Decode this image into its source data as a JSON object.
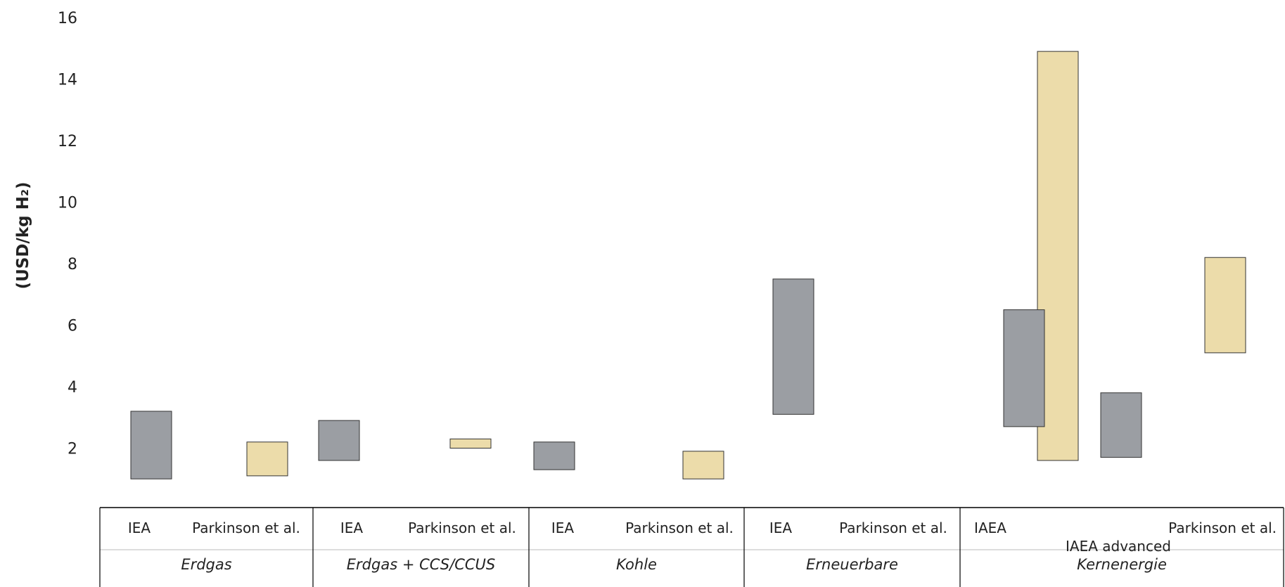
{
  "chart_data": {
    "type": "bar",
    "ylabel": "(USD/kg H₂)",
    "ylim": [
      0,
      16
    ],
    "yticks": [
      2,
      4,
      6,
      8,
      10,
      12,
      14,
      16
    ],
    "colors": {
      "IEA": "#9b9ea3",
      "Parkinson": "#ecdcaa"
    },
    "groups": [
      {
        "label": "Erdgas",
        "sources": [
          {
            "label": "IEA",
            "low": 1.0,
            "high": 3.2,
            "color": "#9b9ea3"
          },
          {
            "label": "Parkinson et al.",
            "low": 1.1,
            "high": 2.2,
            "color": "#ecdcaa"
          }
        ]
      },
      {
        "label": "Erdgas + CCS/CCUS",
        "sources": [
          {
            "label": "IEA",
            "low": 1.6,
            "high": 2.9,
            "color": "#9b9ea3"
          },
          {
            "label": "Parkinson et al.",
            "low": 2.0,
            "high": 2.3,
            "color": "#ecdcaa"
          }
        ]
      },
      {
        "label": "Kohle",
        "sources": [
          {
            "label": "IEA",
            "low": 1.3,
            "high": 2.2,
            "color": "#9b9ea3"
          },
          {
            "label": "Parkinson et al.",
            "low": 1.0,
            "high": 1.9,
            "color": "#ecdcaa"
          }
        ]
      },
      {
        "label": "Erneuerbare",
        "sources": [
          {
            "label": "IEA",
            "low": 3.1,
            "high": 7.5,
            "color": "#9b9ea3"
          },
          {
            "label": "Parkinson et al.",
            "low": 1.6,
            "high": 14.9,
            "color": "#ecdcaa"
          }
        ]
      },
      {
        "label": "Kernenergie",
        "sources": [
          {
            "label": "IAEA",
            "low": 2.7,
            "high": 6.5,
            "color": "#9b9ea3"
          },
          {
            "label": "IAEA advanced",
            "low": 1.7,
            "high": 3.8,
            "color": "#9b9ea3"
          },
          {
            "label": "Parkinson et al.",
            "low": 5.1,
            "high": 8.2,
            "color": "#ecdcaa"
          }
        ]
      }
    ]
  }
}
